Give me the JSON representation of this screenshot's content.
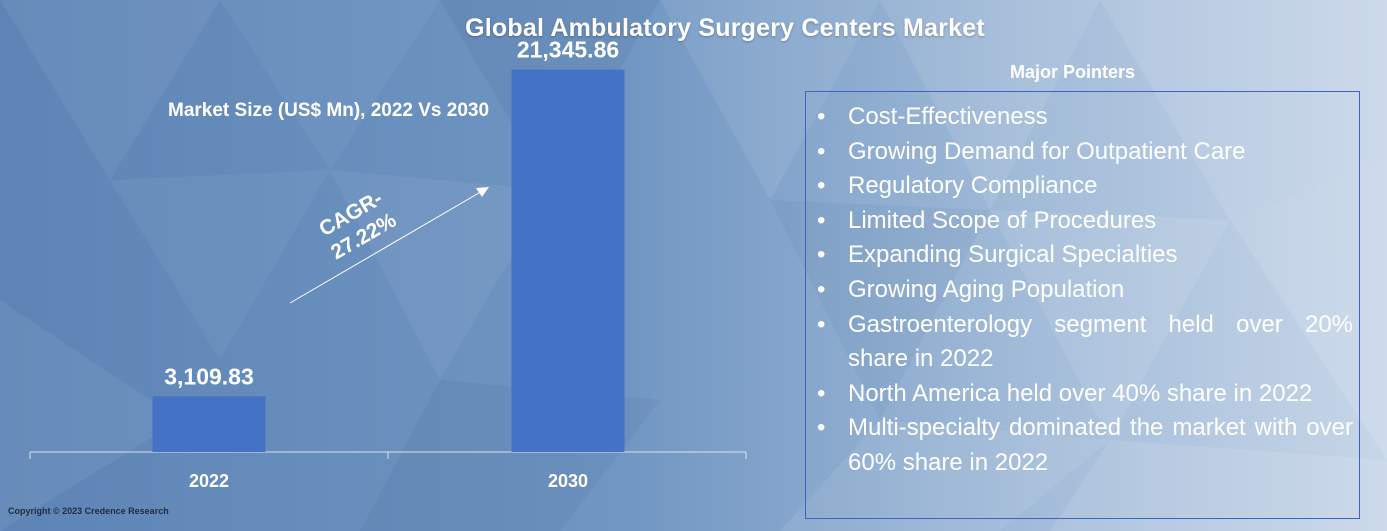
{
  "title": "Global Ambulatory Surgery Centers Market",
  "copyright": "Copyright © 2023 Credence Research",
  "colors": {
    "bar": "#4472c4",
    "text": "#ffffff",
    "box_border": "#3f63c4"
  },
  "chart_data": {
    "type": "bar",
    "title": "Market Size (US$ Mn), 2022 Vs 2030",
    "categories": [
      "2022",
      "2030"
    ],
    "values": [
      3109.83,
      21345.86
    ],
    "value_labels": [
      "3,109.83",
      "21,345.86"
    ],
    "annotation": {
      "line1": "CAGR-",
      "line2": "27.22%"
    },
    "ylim": [
      0,
      23000
    ],
    "grid": false,
    "legend": "none"
  },
  "pointers": {
    "heading": "Major Pointers",
    "bullet": "•",
    "items": [
      "Cost-Effectiveness",
      "Growing Demand for Outpatient Care",
      "Regulatory Compliance",
      "Limited Scope of Procedures",
      "Expanding Surgical Specialties",
      "Growing Aging Population",
      "Gastroenterology segment held over 20% share in 2022",
      "North America held over 40% share in 2022",
      "Multi-specialty dominated the market with over 60% share in 2022"
    ]
  }
}
